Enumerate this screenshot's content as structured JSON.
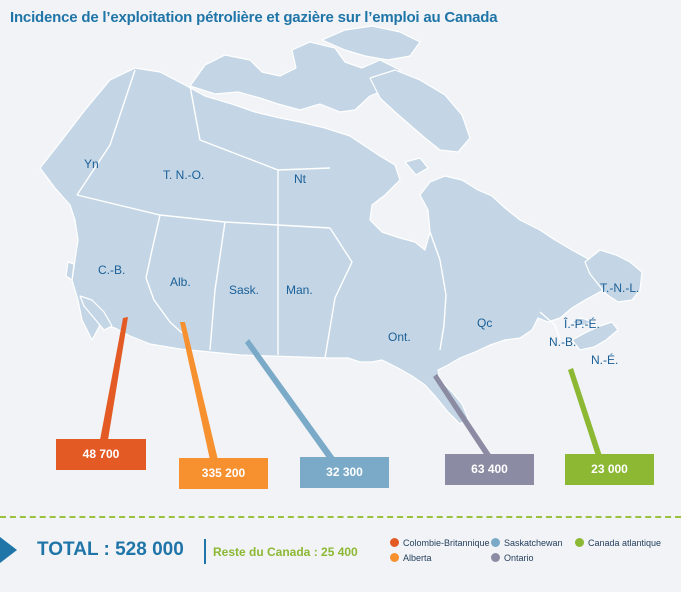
{
  "title": "Incidence de l’exploitation pétrolière et gazière sur l’emploi au Canada",
  "provinces": {
    "yn": "Yn",
    "tno": "T. N.-O.",
    "nt": "Nt",
    "cb": "C.-B.",
    "alb": "Alb.",
    "sask": "Sask.",
    "man": "Man.",
    "ont": "Ont.",
    "qc": "Qc",
    "tnl": "T.-N.-L.",
    "ipe": "Î.-P.-É.",
    "nb": "N.-B.",
    "ne": "N.-É."
  },
  "callouts": {
    "bc": "48 700",
    "alberta": "335 200",
    "sask": "32 300",
    "ontario": "63 400",
    "atlantic": "23 000"
  },
  "colors": {
    "bc": "#e35a24",
    "alberta": "#f7902f",
    "sask": "#7aaac8",
    "ontario": "#8b8ca3",
    "atlantic": "#8cb833",
    "map": "#c4d6e5",
    "accent": "#1f75a8"
  },
  "total_label": "TOTAL : 528 000",
  "reste_label": "Reste du Canada : 25 400",
  "legend": {
    "bc": "Colombie-Britannique",
    "alberta": "Alberta",
    "sask": "Saskatchewan",
    "ontario": "Ontario",
    "atlantic": "Canada atlantique"
  }
}
